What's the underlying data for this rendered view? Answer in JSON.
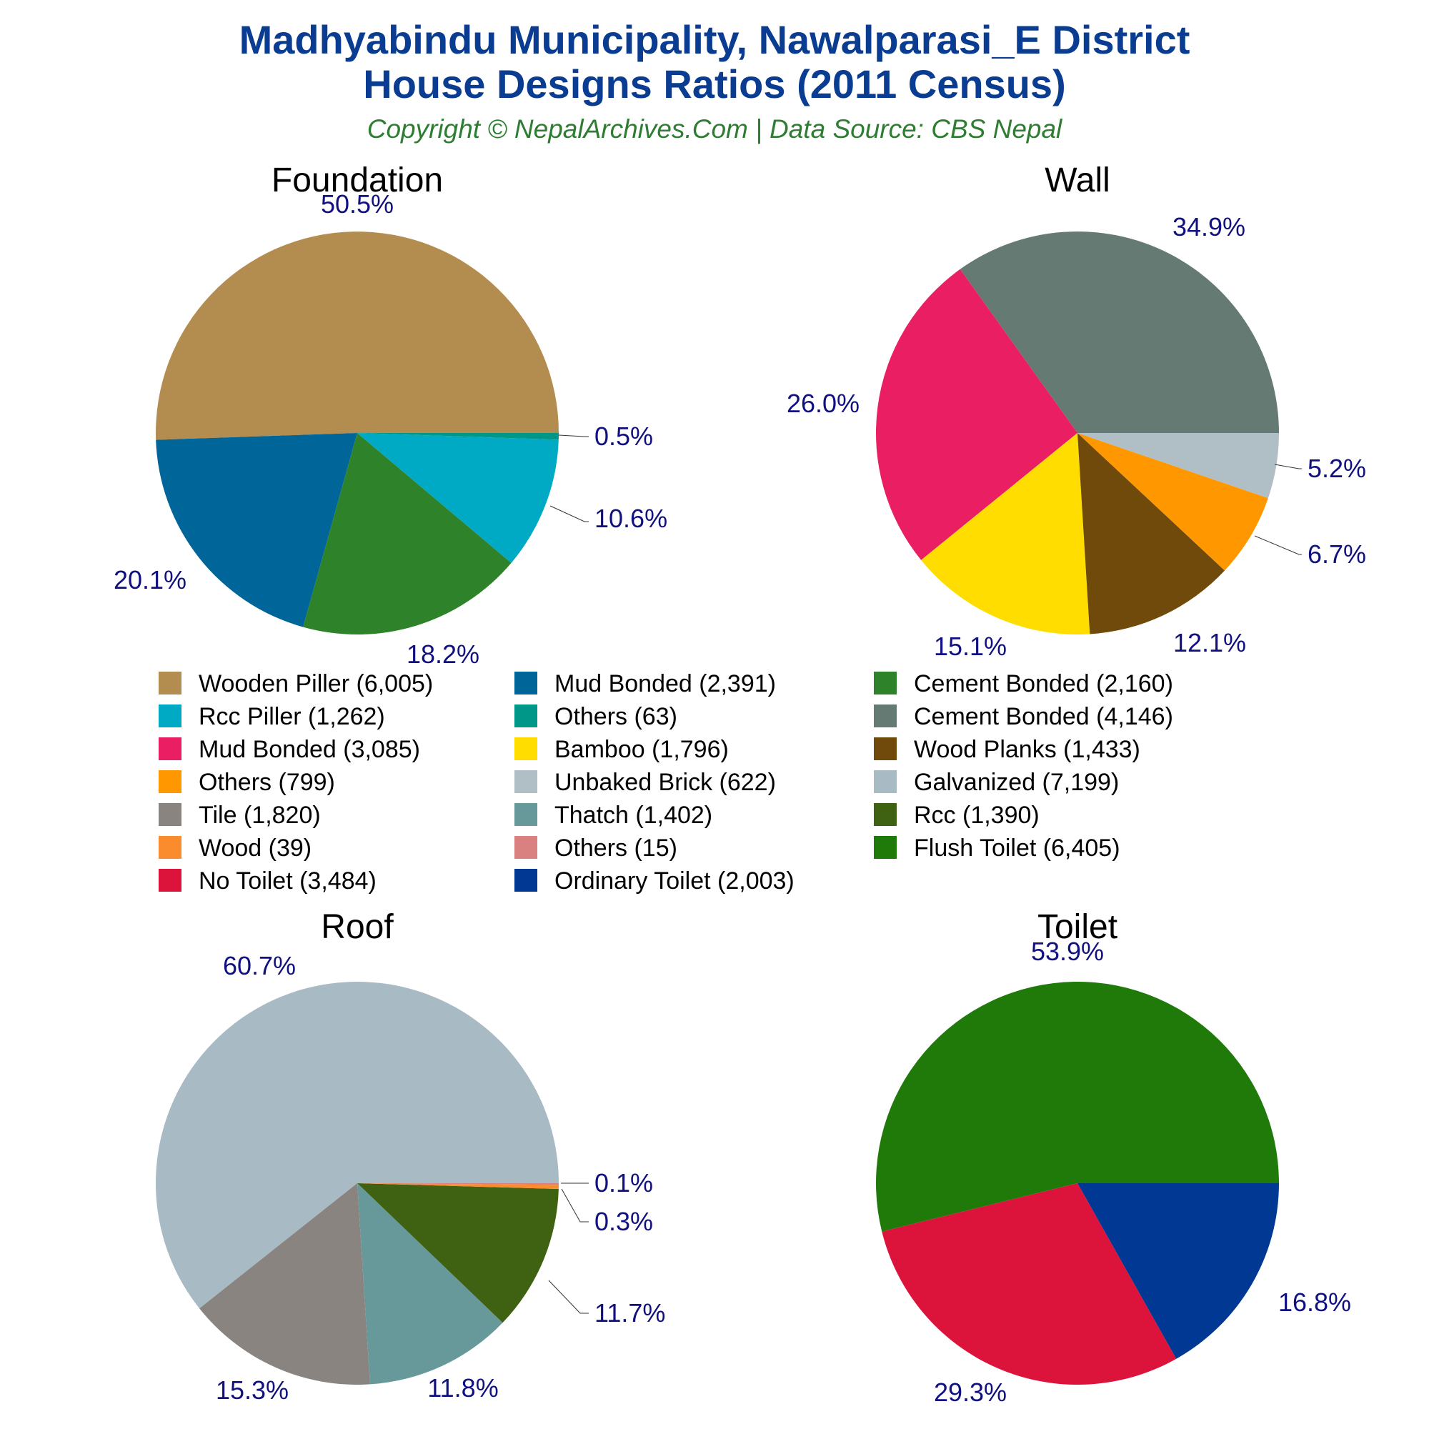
{
  "header": {
    "title_line1": "Madhyabindu Municipality, Nawalparasi_E District",
    "title_line2": "House Designs Ratios (2011 Census)",
    "subtitle": "Copyright © NepalArchives.Com | Data Source: CBS Nepal"
  },
  "chart_data": [
    {
      "type": "pie",
      "title": "Foundation",
      "slices": [
        {
          "label": "Wooden Piller",
          "value": 6005,
          "pct": "50.5%",
          "color": "#b38d50"
        },
        {
          "label": "Mud Bonded",
          "value": 2391,
          "pct": "20.1%",
          "color": "#006699"
        },
        {
          "label": "Cement Bonded",
          "value": 2160,
          "pct": "18.2%",
          "color": "#2e8229"
        },
        {
          "label": "Rcc Piller",
          "value": 1262,
          "pct": "10.6%",
          "color": "#00aac4"
        },
        {
          "label": "Others",
          "value": 63,
          "pct": "0.5%",
          "color": "#009688"
        }
      ]
    },
    {
      "type": "pie",
      "title": "Wall",
      "slices": [
        {
          "label": "Cement Bonded",
          "value": 4146,
          "pct": "34.9%",
          "color": "#657a72"
        },
        {
          "label": "Mud Bonded",
          "value": 3085,
          "pct": "26.0%",
          "color": "#e91e63"
        },
        {
          "label": "Bamboo",
          "value": 1796,
          "pct": "15.1%",
          "color": "#ffdd00"
        },
        {
          "label": "Wood Planks",
          "value": 1433,
          "pct": "12.1%",
          "color": "#6f4a0b"
        },
        {
          "label": "Others",
          "value": 799,
          "pct": "6.7%",
          "color": "#ff9800"
        },
        {
          "label": "Unbaked Brick",
          "value": 622,
          "pct": "5.2%",
          "color": "#b0bec5"
        }
      ]
    },
    {
      "type": "pie",
      "title": "Roof",
      "slices": [
        {
          "label": "Galvanized",
          "value": 7199,
          "pct": "60.7%",
          "color": "#a8bac4"
        },
        {
          "label": "Tile",
          "value": 1820,
          "pct": "15.3%",
          "color": "#8a8480"
        },
        {
          "label": "Thatch",
          "value": 1402,
          "pct": "11.8%",
          "color": "#68999a"
        },
        {
          "label": "Rcc",
          "value": 1390,
          "pct": "11.7%",
          "color": "#3e6212"
        },
        {
          "label": "Wood",
          "value": 39,
          "pct": "0.3%",
          "color": "#fb8c2e"
        },
        {
          "label": "Others",
          "value": 15,
          "pct": "0.1%",
          "color": "#d98080"
        }
      ]
    },
    {
      "type": "pie",
      "title": "Toilet",
      "slices": [
        {
          "label": "Flush Toilet",
          "value": 6405,
          "pct": "53.9%",
          "color": "#1f7a0a"
        },
        {
          "label": "No Toilet",
          "value": 3484,
          "pct": "29.3%",
          "color": "#dc143c"
        },
        {
          "label": "Ordinary Toilet",
          "value": 2003,
          "pct": "16.8%",
          "color": "#003893"
        }
      ]
    }
  ],
  "legend": [
    {
      "text": "Wooden Piller (6,005)",
      "color": "#b38d50"
    },
    {
      "text": "Mud Bonded (2,391)",
      "color": "#006699"
    },
    {
      "text": "Cement Bonded (2,160)",
      "color": "#2e8229"
    },
    {
      "text": "Rcc Piller (1,262)",
      "color": "#00aac4"
    },
    {
      "text": "Others (63)",
      "color": "#009688"
    },
    {
      "text": "Cement Bonded (4,146)",
      "color": "#657a72"
    },
    {
      "text": "Mud Bonded (3,085)",
      "color": "#e91e63"
    },
    {
      "text": "Bamboo (1,796)",
      "color": "#ffdd00"
    },
    {
      "text": "Wood Planks (1,433)",
      "color": "#6f4a0b"
    },
    {
      "text": "Others (799)",
      "color": "#ff9800"
    },
    {
      "text": "Unbaked Brick (622)",
      "color": "#b0bec5"
    },
    {
      "text": "Galvanized (7,199)",
      "color": "#a8bac4"
    },
    {
      "text": "Tile (1,820)",
      "color": "#8a8480"
    },
    {
      "text": "Thatch (1,402)",
      "color": "#68999a"
    },
    {
      "text": "Rcc (1,390)",
      "color": "#3e6212"
    },
    {
      "text": "Wood (39)",
      "color": "#fb8c2e"
    },
    {
      "text": "Others (15)",
      "color": "#d98080"
    },
    {
      "text": "Flush Toilet (6,405)",
      "color": "#1f7a0a"
    },
    {
      "text": "No Toilet (3,484)",
      "color": "#dc143c"
    },
    {
      "text": "Ordinary Toilet (2,003)",
      "color": "#003893"
    }
  ]
}
